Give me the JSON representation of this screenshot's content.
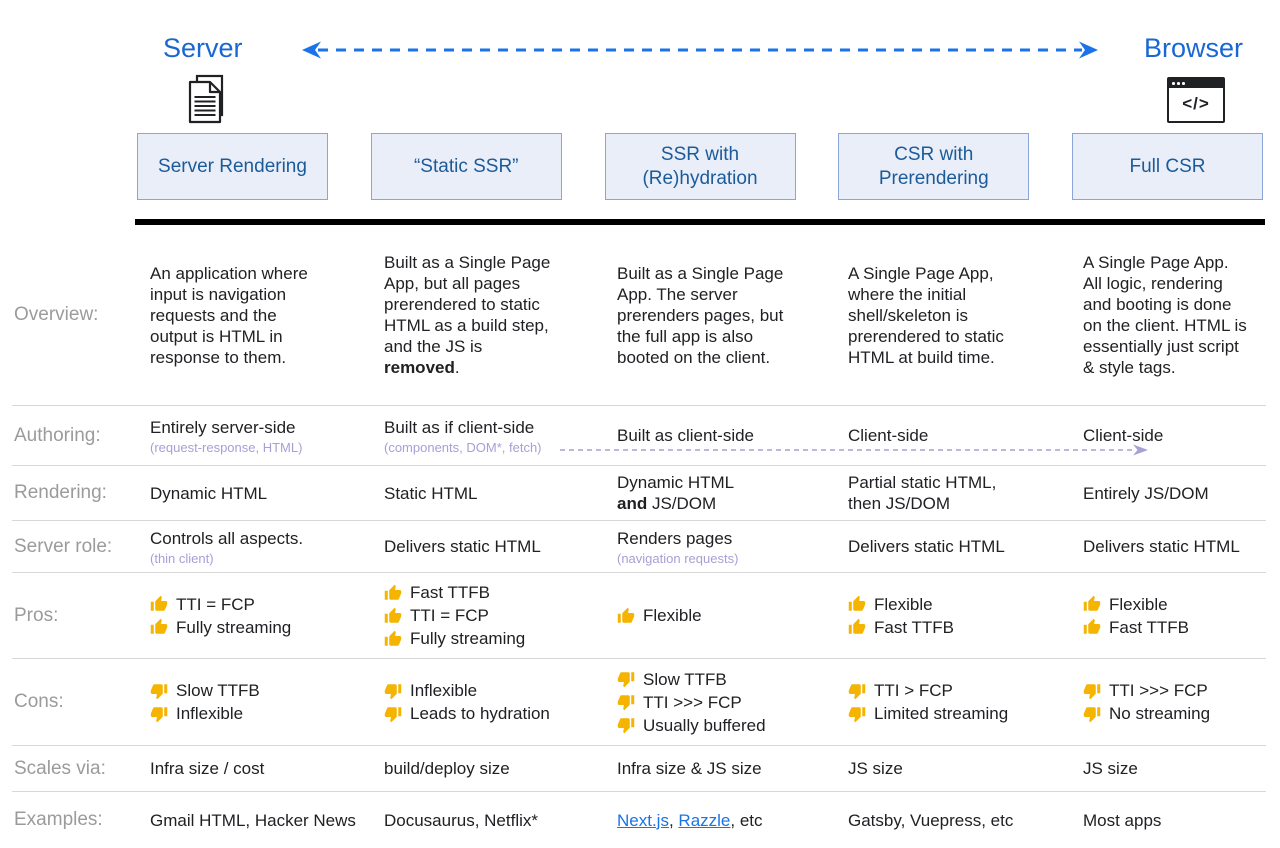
{
  "top": {
    "server_label": "Server",
    "browser_label": "Browser"
  },
  "icons": {
    "server_icon": "documents-stack-icon",
    "browser_icon": "browser-window-code-icon",
    "browser_glyph": "</>",
    "pro_icon": "thumb-up-icon",
    "con_icon": "thumb-down-icon"
  },
  "colors": {
    "accent_blue": "#1967d2",
    "arrow_blue": "#1a73e8",
    "header_text": "#1c5b99",
    "header_bg": "#e9eef9",
    "header_border": "#8aa5d8",
    "row_divider": "#d8d8d8",
    "label_gray": "#9b9b9b",
    "body_text": "#202124",
    "subtext_purple": "#a5a0d6",
    "link_blue": "#1a73e8",
    "thumb_yellow": "#f4b400"
  },
  "columns": [
    {
      "key": "server-rendering",
      "label": "Server Rendering"
    },
    {
      "key": "static-ssr",
      "label": "“Static SSR”"
    },
    {
      "key": "ssr-with-rehydration",
      "label": "SSR with (Re)hydration"
    },
    {
      "key": "csr-with-prerendering",
      "label": "CSR with Prerendering"
    },
    {
      "key": "full-csr",
      "label": "Full CSR"
    }
  ],
  "table": {
    "rows": [
      {
        "key": "overview",
        "label": "Overview:",
        "cells": [
          {
            "segments": [
              {
                "t": "An application where input is navigation requests and the output is HTML in response to them."
              }
            ]
          },
          {
            "segments": [
              {
                "t": "Built as a Single Page App, but all pages prerendered to static HTML as a build step, and the JS is "
              },
              {
                "t": "removed",
                "b": true
              },
              {
                "t": "."
              }
            ]
          },
          {
            "segments": [
              {
                "t": "Built as a Single Page App. The server prerenders pages, but the full app is also booted on the client."
              }
            ]
          },
          {
            "segments": [
              {
                "t": "A Single Page App, where the initial shell/skeleton is prerendered to static HTML at build time."
              }
            ]
          },
          {
            "segments": [
              {
                "t": "A Single Page App. All logic, rendering and booting is done on the client. HTML is essentially just script & style tags."
              }
            ]
          }
        ]
      },
      {
        "key": "authoring",
        "label": "Authoring:",
        "arrow": true,
        "cells": [
          {
            "segments": [
              {
                "t": "Entirely server-side"
              }
            ],
            "sub": "(request-response, HTML)"
          },
          {
            "segments": [
              {
                "t": "Built as if client-side"
              }
            ],
            "sub": "(components, DOM*, fetch)"
          },
          {
            "segments": [
              {
                "t": "Built as client-side"
              }
            ]
          },
          {
            "segments": [
              {
                "t": "Client-side"
              }
            ]
          },
          {
            "segments": [
              {
                "t": "Client-side"
              }
            ]
          }
        ]
      },
      {
        "key": "rendering",
        "label": "Rendering:",
        "cells": [
          {
            "segments": [
              {
                "t": "Dynamic HTML"
              }
            ]
          },
          {
            "segments": [
              {
                "t": "Static HTML"
              }
            ]
          },
          {
            "segments": [
              {
                "t": "Dynamic HTML"
              },
              {
                "br": true
              },
              {
                "t": "and",
                "b": true
              },
              {
                "t": " JS/DOM"
              }
            ]
          },
          {
            "segments": [
              {
                "t": "Partial static HTML,"
              },
              {
                "br": true
              },
              {
                "t": "then JS/DOM"
              }
            ]
          },
          {
            "segments": [
              {
                "t": "Entirely JS/DOM"
              }
            ]
          }
        ]
      },
      {
        "key": "server_role",
        "label": "Server role:",
        "cells": [
          {
            "segments": [
              {
                "t": "Controls all aspects."
              }
            ],
            "sub": "(thin client)"
          },
          {
            "segments": [
              {
                "t": "Delivers static HTML"
              }
            ]
          },
          {
            "segments": [
              {
                "t": "Renders pages"
              }
            ],
            "sub": "(navigation requests)"
          },
          {
            "segments": [
              {
                "t": "Delivers static HTML"
              }
            ]
          },
          {
            "segments": [
              {
                "t": "Delivers static HTML"
              }
            ]
          }
        ]
      },
      {
        "key": "pros",
        "label": "Pros:",
        "cells": [
          {
            "items": [
              {
                "icon": "thumb-up",
                "t": "TTI = FCP"
              },
              {
                "icon": "thumb-up",
                "t": "Fully streaming"
              }
            ]
          },
          {
            "items": [
              {
                "icon": "thumb-up",
                "t": "Fast TTFB"
              },
              {
                "icon": "thumb-up",
                "t": "TTI = FCP"
              },
              {
                "icon": "thumb-up",
                "t": "Fully streaming"
              }
            ]
          },
          {
            "items": [
              {
                "icon": "thumb-up",
                "t": "Flexible"
              }
            ]
          },
          {
            "items": [
              {
                "icon": "thumb-up",
                "t": "Flexible"
              },
              {
                "icon": "thumb-up",
                "t": "Fast TTFB"
              }
            ]
          },
          {
            "items": [
              {
                "icon": "thumb-up",
                "t": "Flexible"
              },
              {
                "icon": "thumb-up",
                "t": "Fast TTFB"
              }
            ]
          }
        ]
      },
      {
        "key": "cons",
        "label": "Cons:",
        "cells": [
          {
            "items": [
              {
                "icon": "thumb-down",
                "t": "Slow TTFB"
              },
              {
                "icon": "thumb-down",
                "t": "Inflexible"
              }
            ]
          },
          {
            "items": [
              {
                "icon": "thumb-down",
                "t": "Inflexible"
              },
              {
                "icon": "thumb-down",
                "t": "Leads to hydration"
              }
            ]
          },
          {
            "items": [
              {
                "icon": "thumb-down",
                "t": "Slow TTFB"
              },
              {
                "icon": "thumb-down",
                "t": "TTI >>> FCP"
              },
              {
                "icon": "thumb-down",
                "t": "Usually buffered"
              }
            ]
          },
          {
            "items": [
              {
                "icon": "thumb-down",
                "t": "TTI > FCP"
              },
              {
                "icon": "thumb-down",
                "t": "Limited streaming"
              }
            ]
          },
          {
            "items": [
              {
                "icon": "thumb-down",
                "t": "TTI >>> FCP"
              },
              {
                "icon": "thumb-down",
                "t": "No streaming"
              }
            ]
          }
        ]
      },
      {
        "key": "scales_via",
        "label": "Scales via:",
        "cells": [
          {
            "segments": [
              {
                "t": "Infra size / cost"
              }
            ]
          },
          {
            "segments": [
              {
                "t": "build/deploy size"
              }
            ]
          },
          {
            "segments": [
              {
                "t": "Infra size & JS size"
              }
            ]
          },
          {
            "segments": [
              {
                "t": "JS size"
              }
            ]
          },
          {
            "segments": [
              {
                "t": "JS size"
              }
            ]
          }
        ]
      },
      {
        "key": "examples",
        "label": "Examples:",
        "cells": [
          {
            "segments": [
              {
                "t": "Gmail HTML, Hacker News"
              }
            ]
          },
          {
            "segments": [
              {
                "t": "Docusaurus, Netflix*"
              }
            ]
          },
          {
            "segments": [
              {
                "t": "Next.js",
                "link": true
              },
              {
                "t": ", "
              },
              {
                "t": "Razzle",
                "link": true
              },
              {
                "t": ", etc"
              }
            ]
          },
          {
            "segments": [
              {
                "t": "Gatsby, Vuepress, etc"
              }
            ]
          },
          {
            "segments": [
              {
                "t": "Most apps"
              }
            ]
          }
        ]
      }
    ]
  }
}
